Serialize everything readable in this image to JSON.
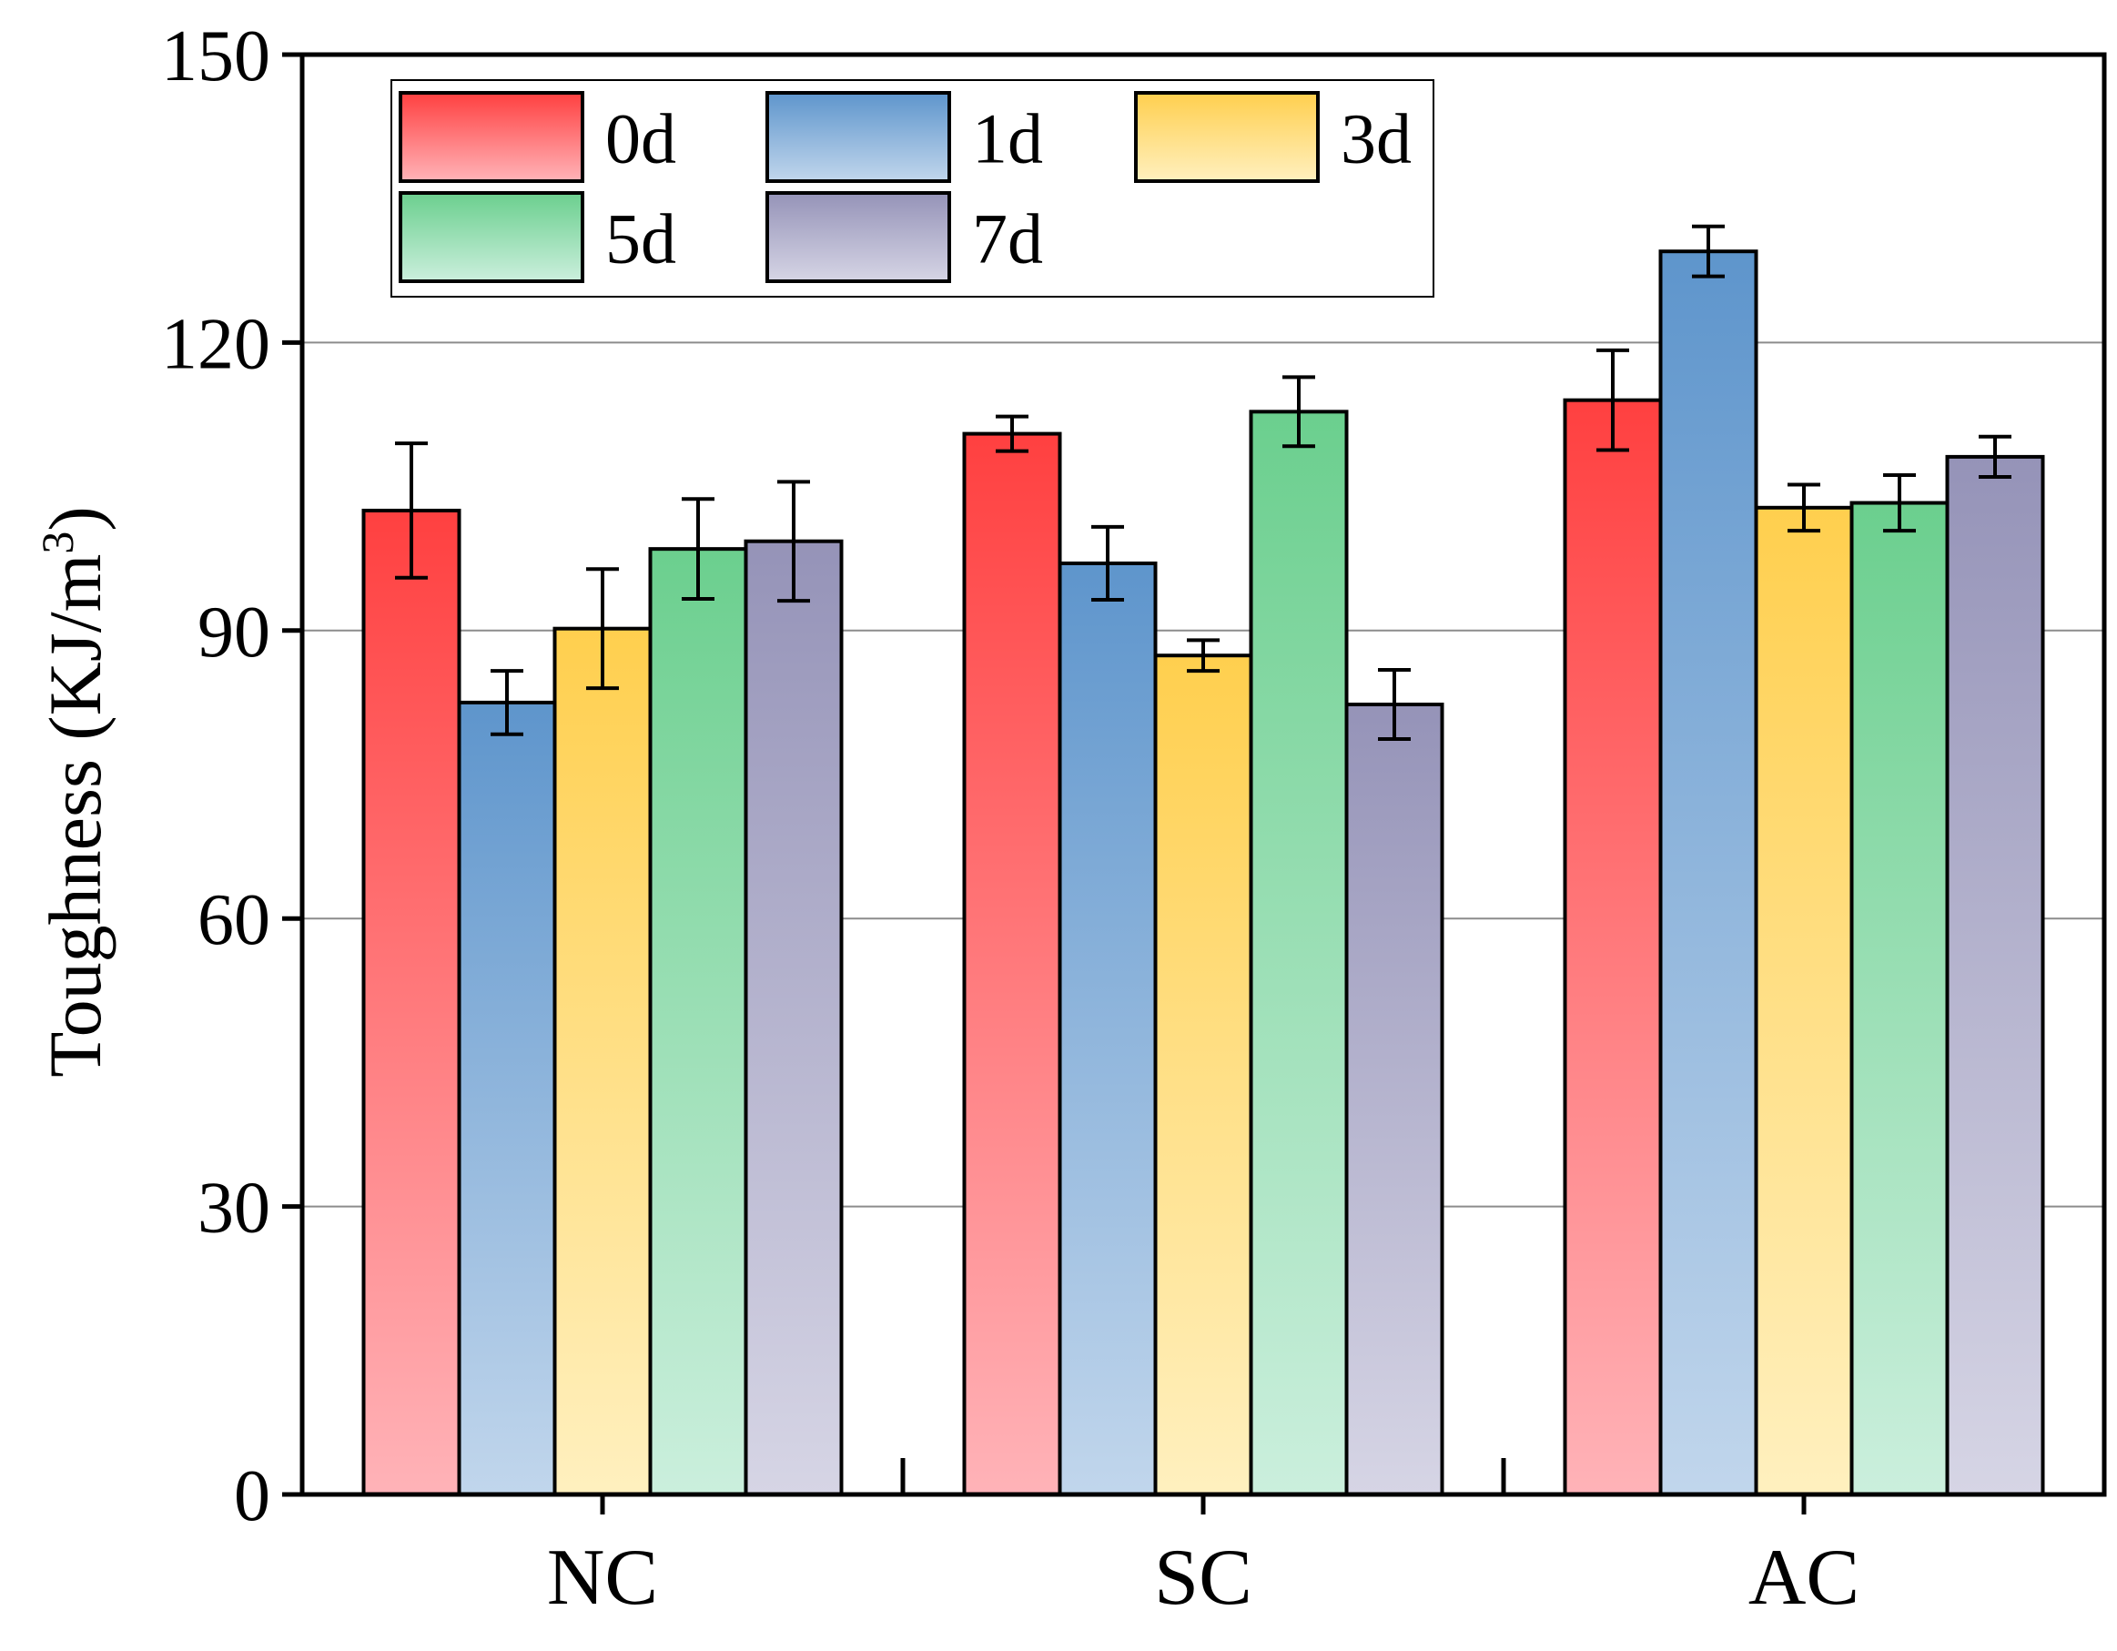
{
  "chart_data": {
    "type": "bar",
    "title": "",
    "xlabel": "",
    "ylabel": "Toughness (KJ/m",
    "ylabel_superscript": "3",
    "ylabel_close": ")",
    "ylim": [
      0,
      150
    ],
    "yticks": [
      "0",
      "30",
      "60",
      "90",
      "120",
      "150"
    ],
    "grid": true,
    "legend_position": "top-left",
    "categories": [
      "NC",
      "SC",
      "AC"
    ],
    "series": [
      {
        "name": "0d",
        "values": [
          102.5,
          110.5,
          114.0
        ],
        "errors": [
          7.0,
          1.8,
          5.2
        ],
        "color_top": "#ff4040",
        "color_bottom": "#ffb3b8"
      },
      {
        "name": "1d",
        "values": [
          82.5,
          97.0,
          129.5
        ],
        "errors": [
          3.3,
          3.8,
          2.6
        ],
        "color_top": "#5e95cc",
        "color_bottom": "#c1d6ec"
      },
      {
        "name": "3d",
        "values": [
          90.2,
          87.4,
          102.8
        ],
        "errors": [
          6.2,
          1.6,
          2.4
        ],
        "color_top": "#ffcf4e",
        "color_bottom": "#fff0bf"
      },
      {
        "name": "5d",
        "values": [
          98.5,
          112.8,
          103.3
        ],
        "errors": [
          5.2,
          3.6,
          2.9
        ],
        "color_top": "#6bcf8e",
        "color_bottom": "#cbefdd"
      },
      {
        "name": "7d",
        "values": [
          99.3,
          82.3,
          108.1
        ],
        "errors": [
          6.2,
          3.6,
          2.1
        ],
        "color_top": "#9593b8",
        "color_bottom": "#d6d5e5"
      }
    ]
  }
}
